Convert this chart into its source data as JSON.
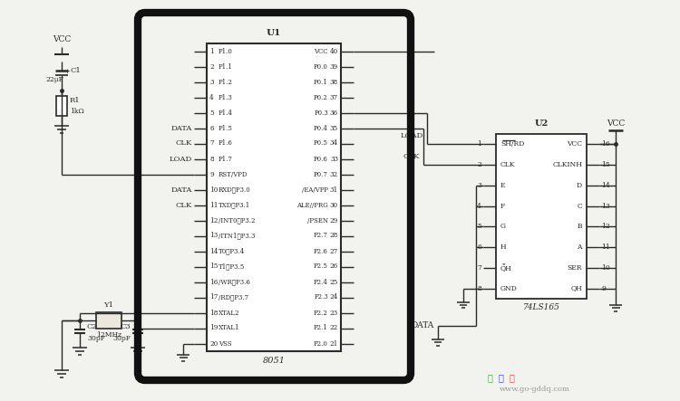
{
  "bg_color": "#f2f2ee",
  "line_color": "#2a2a2a",
  "figsize": [
    7.5,
    4.43
  ],
  "dpi": 100,
  "u1_label": "U1",
  "u1_chip_label": "8051",
  "u2_label": "U2",
  "u2_chip_label": "74LS165",
  "u1_left_pins": [
    [
      1,
      "P1.0"
    ],
    [
      2,
      "P1.1"
    ],
    [
      3,
      "P1.2"
    ],
    [
      4,
      "P1.3"
    ],
    [
      5,
      "P1.4"
    ],
    [
      6,
      "P1.5"
    ],
    [
      7,
      "P1.6"
    ],
    [
      8,
      "P1.7"
    ],
    [
      9,
      "RST/VPD"
    ],
    [
      10,
      "RXD、P3.0"
    ],
    [
      11,
      "TXD、P3.1"
    ],
    [
      12,
      "/INT0、P3.2"
    ],
    [
      13,
      "/ITN1、P3.3"
    ],
    [
      14,
      "T0、P3.4"
    ],
    [
      15,
      "T1、P3.5"
    ],
    [
      16,
      "/WR、P3.6"
    ],
    [
      17,
      "/RD、P3.7"
    ],
    [
      18,
      "XTAL2"
    ],
    [
      19,
      "XTAL1"
    ],
    [
      20,
      "VSS"
    ]
  ],
  "u1_right_pins": [
    [
      40,
      "VCC"
    ],
    [
      39,
      "P0.0"
    ],
    [
      38,
      "P0.1"
    ],
    [
      37,
      "P0.2"
    ],
    [
      36,
      "P0.3"
    ],
    [
      35,
      "P0.4"
    ],
    [
      34,
      "P0.5"
    ],
    [
      33,
      "P0.6"
    ],
    [
      32,
      "P0.7"
    ],
    [
      31,
      "/EA/VPP"
    ],
    [
      30,
      "ALE//PRG"
    ],
    [
      29,
      "/PSEN"
    ],
    [
      28,
      "P2.7"
    ],
    [
      27,
      "P2.6"
    ],
    [
      26,
      "P2.5"
    ],
    [
      25,
      "P2.4"
    ],
    [
      24,
      "P2.3"
    ],
    [
      23,
      "P2.2"
    ],
    [
      22,
      "P2.1"
    ],
    [
      21,
      "P2.0"
    ]
  ],
  "u2_left_pins": [
    [
      1,
      "SH/RD",
      true
    ],
    [
      2,
      "CLK",
      false
    ],
    [
      3,
      "E",
      false
    ],
    [
      4,
      "F",
      false
    ],
    [
      5,
      "G",
      false
    ],
    [
      6,
      "H",
      false
    ],
    [
      7,
      "QH",
      true
    ],
    [
      8,
      "GND",
      false
    ]
  ],
  "u2_right_pins": [
    [
      16,
      "VCC",
      false
    ],
    [
      15,
      "CLKINH",
      false
    ],
    [
      14,
      "D",
      false
    ],
    [
      13,
      "C",
      false
    ],
    [
      12,
      "B",
      false
    ],
    [
      11,
      "A",
      false
    ],
    [
      10,
      "SER",
      false
    ],
    [
      9,
      "QH",
      false
    ]
  ],
  "watermark": "www.go-gddq.com"
}
